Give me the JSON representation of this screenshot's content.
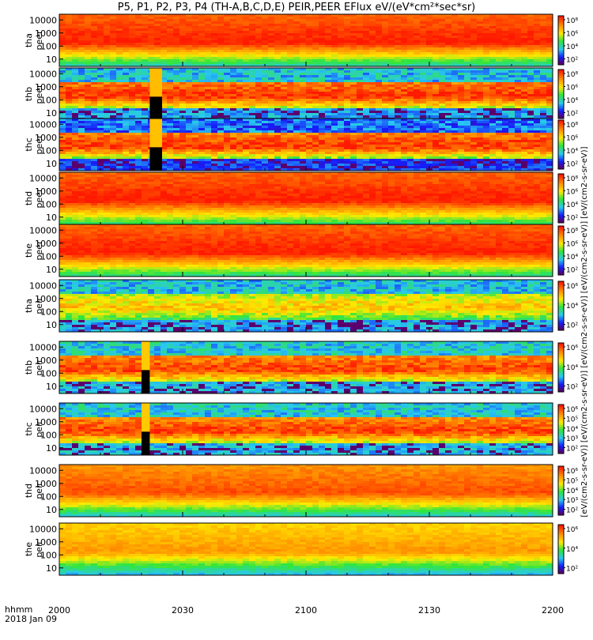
{
  "title": "P5, P1, P2, P3, P4 (TH-A,B,C,D,E) PEIR,PEER EFlux eV/(eV*cm²*sec*sr)",
  "time_axis": {
    "label_line1": "hhmm",
    "label_line2": "2018 Jan 09",
    "ticks": [
      "2000",
      "2030",
      "2100",
      "2130",
      "2200"
    ],
    "range_minutes": [
      0,
      120
    ]
  },
  "colorbar_label": "[eV/(cm2-s-sr-eV)] [eV/(cm2-s-sr-eV)] [eV/(cm2-s-sr-eV)] [eV/(cm2-s-sr-eV)] [eV/(cm2-s-sr-eV)]",
  "colors": {
    "red": "#ff1e00",
    "orange": "#ff8c00",
    "yellow": "#ffe600",
    "green": "#32e632",
    "cyan": "#32d2e6",
    "blue": "#1428ff",
    "purple": "#8c00c8",
    "black": "#000000"
  },
  "chart_data": {
    "type": "heatmap",
    "title": "P5, P1, P2, P3, P4 (TH-A,B,C,D,E) PEIR,PEER EFlux eV/(eV*cm²*sec*sr)",
    "x_ticks": [
      "2000",
      "2030",
      "2100",
      "2130",
      "2200"
    ],
    "y_scale": "log",
    "y_ticks": [
      "10",
      "100",
      "1000",
      "10000"
    ],
    "colorbar_scale": "log",
    "panels": [
      {
        "name": "tha peer",
        "line1": "tha",
        "line2": "peer",
        "cb_ticks": [
          "10²",
          "10⁴",
          "10⁶",
          "10⁸"
        ],
        "flux_peak": 1.0,
        "flux_low": 0.38,
        "noise": false,
        "gap_minutes": null
      },
      {
        "name": "thb peer",
        "line1": "thb",
        "line2": "peer",
        "cb_ticks": [
          "10²",
          "10⁴",
          "10⁶",
          "10⁸"
        ],
        "flux_peak": 0.98,
        "flux_low": 0.2,
        "noise": true,
        "gap_minutes": [
          22,
          25
        ]
      },
      {
        "name": "thc peer",
        "line1": "thc",
        "line2": "peer",
        "cb_ticks": [
          "10²",
          "10⁴",
          "10⁶",
          "10⁸"
        ],
        "flux_peak": 0.97,
        "flux_low": 0.1,
        "noise": true,
        "gap_minutes": [
          22,
          25
        ]
      },
      {
        "name": "thd peer",
        "line1": "thd",
        "line2": "peer",
        "cb_ticks": [
          "10²",
          "10⁴",
          "10⁶",
          "10⁸"
        ],
        "flux_peak": 1.0,
        "flux_low": 0.45,
        "noise": false,
        "gap_minutes": null
      },
      {
        "name": "the peer",
        "line1": "the",
        "line2": "peer",
        "cb_ticks": [
          "10²",
          "10⁴",
          "10⁶",
          "10⁸"
        ],
        "flux_peak": 1.0,
        "flux_low": 0.42,
        "noise": false,
        "gap_minutes": null
      },
      {
        "name": "tha peir",
        "line1": "tha",
        "line2": "peir",
        "cb_ticks": [
          "10²",
          "10⁴",
          "10⁶"
        ],
        "flux_peak": 0.72,
        "flux_low": 0.2,
        "noise": true,
        "gap_minutes": null
      },
      {
        "name": "thb peir",
        "line1": "thb",
        "line2": "peir",
        "cb_ticks": [
          "10²",
          "10⁴",
          "10⁶"
        ],
        "flux_peak": 0.95,
        "flux_low": 0.22,
        "noise": true,
        "gap_minutes": [
          20,
          22
        ]
      },
      {
        "name": "thc peir",
        "line1": "thc",
        "line2": "peir",
        "cb_ticks": [
          "10²",
          "10³",
          "10⁴",
          "10⁵",
          "10⁶"
        ],
        "flux_peak": 0.95,
        "flux_low": 0.22,
        "noise": true,
        "gap_minutes": [
          20,
          22
        ]
      },
      {
        "name": "thd peir",
        "line1": "thd",
        "line2": "peir",
        "cb_ticks": [
          "10²",
          "10³",
          "10⁴",
          "10⁵",
          "10⁶"
        ],
        "flux_peak": 0.92,
        "flux_low": 0.35,
        "noise": false,
        "gap_minutes": null
      },
      {
        "name": "the peir",
        "line1": "the",
        "line2": "peir",
        "cb_ticks": [
          "10²",
          "10⁴",
          "10⁶"
        ],
        "flux_peak": 0.8,
        "flux_low": 0.3,
        "noise": false,
        "gap_minutes": null
      }
    ]
  }
}
